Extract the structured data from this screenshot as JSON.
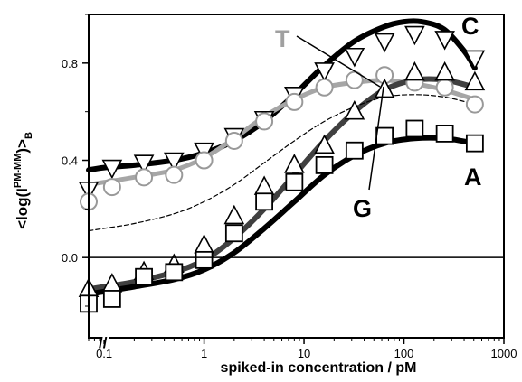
{
  "chart_data": {
    "type": "line",
    "xscale": "log",
    "xlim": [
      0.07,
      1000
    ],
    "ylim": [
      -0.33,
      1.0
    ],
    "x_ticks": [
      0.1,
      1,
      10,
      100,
      1000
    ],
    "x_tick_labels": [
      "0.1",
      "1",
      "10",
      "100",
      "1000"
    ],
    "y_ticks": [
      0.0,
      0.4,
      0.8
    ],
    "y_tick_labels": [
      "0.0",
      "0.4",
      "0.8"
    ],
    "xlabel": "spiked-in concentration / pM",
    "ylabel": {
      "main": "<log(I",
      "sup": "PM-MM",
      "close": ")>",
      "sub": "B"
    },
    "axis_break": "//",
    "reference_line_y": 0.0,
    "series": [
      {
        "name": "C",
        "marker": "triangle-down",
        "color": "#000000",
        "x": [
          0.07,
          0.12,
          0.25,
          0.5,
          1,
          2,
          4,
          8,
          16,
          32,
          64,
          128,
          256,
          512
        ],
        "y": [
          0.28,
          0.37,
          0.39,
          0.4,
          0.44,
          0.5,
          0.57,
          0.67,
          0.77,
          0.83,
          0.89,
          0.92,
          0.9,
          0.82
        ]
      },
      {
        "name": "T",
        "marker": "circle",
        "color": "#999999",
        "x": [
          0.07,
          0.12,
          0.25,
          0.5,
          1,
          2,
          4,
          8,
          16,
          32,
          64,
          128,
          256,
          512
        ],
        "y": [
          0.23,
          0.29,
          0.33,
          0.34,
          0.4,
          0.48,
          0.56,
          0.64,
          0.7,
          0.73,
          0.75,
          0.72,
          0.7,
          0.63
        ]
      },
      {
        "name": "G",
        "marker": "triangle-up",
        "color": "#000000",
        "x": [
          0.07,
          0.12,
          0.25,
          0.5,
          1,
          2,
          4,
          8,
          16,
          32,
          64,
          128,
          256,
          512
        ],
        "y": [
          -0.13,
          -0.11,
          -0.06,
          -0.03,
          0.05,
          0.17,
          0.29,
          0.38,
          0.46,
          0.6,
          0.69,
          0.76,
          0.76,
          0.72
        ]
      },
      {
        "name": "A",
        "marker": "square",
        "color": "#000000",
        "x": [
          0.07,
          0.12,
          0.25,
          0.5,
          1,
          2,
          4,
          8,
          16,
          32,
          64,
          128,
          256,
          512
        ],
        "y": [
          -0.19,
          -0.17,
          -0.08,
          -0.06,
          -0.01,
          0.1,
          0.23,
          0.31,
          0.38,
          0.44,
          0.5,
          0.53,
          0.51,
          0.47
        ]
      }
    ],
    "fit_curves": [
      {
        "for": "C",
        "style": "thick",
        "color": "#000000",
        "x": [
          0.07,
          0.1,
          0.2,
          0.5,
          1,
          2,
          4,
          8,
          16,
          32,
          64,
          100,
          150,
          250,
          400,
          512
        ],
        "y": [
          0.36,
          0.37,
          0.38,
          0.4,
          0.43,
          0.48,
          0.56,
          0.67,
          0.79,
          0.89,
          0.95,
          0.97,
          0.97,
          0.94,
          0.85,
          0.78
        ]
      },
      {
        "for": "T",
        "style": "thick",
        "color": "#a6a6a6",
        "x": [
          0.07,
          0.1,
          0.2,
          0.5,
          1,
          2,
          4,
          8,
          16,
          32,
          64,
          100,
          150,
          250,
          512
        ],
        "y": [
          0.3,
          0.31,
          0.33,
          0.36,
          0.41,
          0.49,
          0.58,
          0.65,
          0.7,
          0.72,
          0.73,
          0.72,
          0.71,
          0.69,
          0.65
        ]
      },
      {
        "for": "G",
        "style": "thick",
        "color": "#404040",
        "x": [
          0.07,
          0.1,
          0.2,
          0.5,
          1,
          2,
          4,
          8,
          16,
          32,
          64,
          128,
          256,
          512
        ],
        "y": [
          -0.13,
          -0.12,
          -0.1,
          -0.06,
          -0.01,
          0.08,
          0.2,
          0.34,
          0.48,
          0.6,
          0.69,
          0.73,
          0.73,
          0.7
        ]
      },
      {
        "for": "A",
        "style": "thick",
        "color": "#000000",
        "x": [
          0.07,
          0.1,
          0.2,
          0.5,
          1,
          2,
          4,
          8,
          16,
          32,
          64,
          128,
          256,
          512
        ],
        "y": [
          -0.15,
          -0.14,
          -0.12,
          -0.09,
          -0.05,
          0.02,
          0.12,
          0.23,
          0.34,
          0.42,
          0.47,
          0.49,
          0.49,
          0.47
        ]
      },
      {
        "for": "reference",
        "style": "dashed-thin",
        "color": "#000000",
        "x": [
          0.07,
          0.1,
          0.2,
          0.5,
          1,
          2,
          4,
          8,
          16,
          32,
          64,
          128,
          256,
          512
        ],
        "y": [
          0.11,
          0.12,
          0.14,
          0.18,
          0.23,
          0.3,
          0.39,
          0.48,
          0.56,
          0.62,
          0.66,
          0.67,
          0.66,
          0.63
        ]
      }
    ],
    "annotations": [
      {
        "text": "C",
        "color": "#000000"
      },
      {
        "text": "T",
        "color": "#a0a0a0"
      },
      {
        "text": "G",
        "color": "#000000"
      },
      {
        "text": "A",
        "color": "#000000"
      }
    ]
  }
}
